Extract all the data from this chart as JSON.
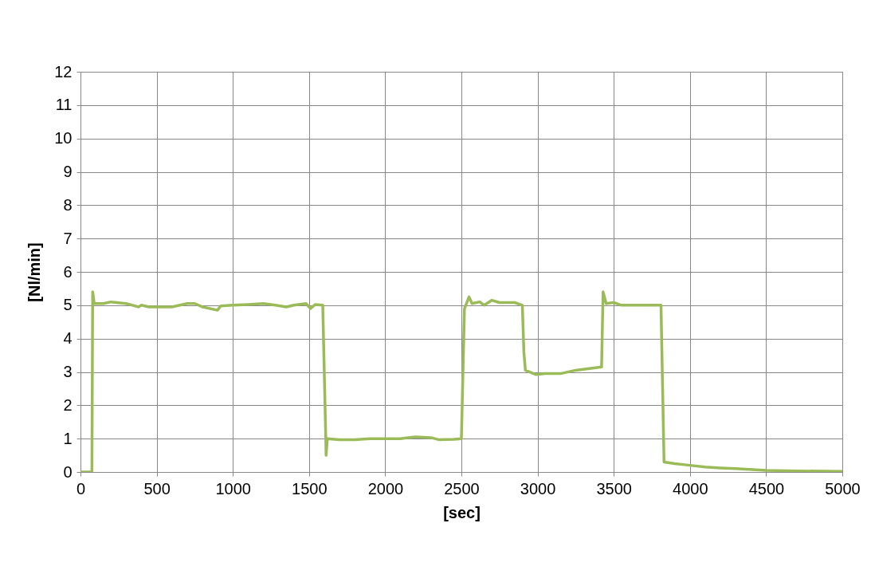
{
  "chart_data": {
    "type": "line",
    "xlabel": "[sec]",
    "ylabel": "[Nl/min]",
    "xlim": [
      0,
      5000
    ],
    "xticks": [
      0,
      500,
      1000,
      1500,
      2000,
      2500,
      3000,
      3500,
      4000,
      4500,
      5000
    ],
    "ylim": [
      0,
      12
    ],
    "yticks": [
      0,
      1,
      2,
      3,
      4,
      5,
      6,
      7,
      8,
      9,
      10,
      11,
      12
    ],
    "grid": true,
    "marker": "none",
    "line_style": "solid",
    "series": [
      {
        "color": "#9bbb59",
        "x": [
          0,
          75,
          80,
          90,
          150,
          200,
          300,
          380,
          400,
          450,
          500,
          600,
          700,
          750,
          800,
          900,
          920,
          1000,
          1100,
          1200,
          1280,
          1350,
          1400,
          1480,
          1510,
          1540,
          1590,
          1610,
          1612,
          1620,
          1700,
          1800,
          1900,
          2000,
          2100,
          2200,
          2300,
          2350,
          2450,
          2500,
          2520,
          2550,
          2570,
          2620,
          2650,
          2700,
          2750,
          2850,
          2900,
          2910,
          2920,
          2990,
          3050,
          3150,
          3250,
          3300,
          3420,
          3430,
          3450,
          3500,
          3550,
          3680,
          3810,
          3830,
          3900,
          4000,
          4100,
          4200,
          4300,
          4500,
          4700,
          5000
        ],
        "values": [
          0,
          0,
          5.4,
          5.05,
          5.05,
          5.1,
          5.05,
          4.95,
          5.0,
          4.95,
          4.95,
          4.95,
          5.05,
          5.05,
          4.95,
          4.85,
          4.98,
          5.0,
          5.02,
          5.05,
          5.0,
          4.95,
          5.0,
          5.05,
          4.9,
          5.02,
          5.0,
          1.0,
          0.5,
          1.0,
          0.97,
          0.97,
          1.0,
          1.0,
          1.0,
          1.05,
          1.03,
          0.97,
          0.98,
          1.0,
          4.9,
          5.25,
          5.05,
          5.1,
          5.0,
          5.15,
          5.08,
          5.08,
          5.0,
          3.6,
          3.05,
          2.92,
          2.95,
          2.95,
          3.05,
          3.08,
          3.15,
          5.4,
          5.05,
          5.08,
          5.0,
          5.0,
          5.0,
          0.3,
          0.25,
          0.2,
          0.15,
          0.12,
          0.1,
          0.05,
          0.03,
          0.02
        ]
      }
    ]
  }
}
